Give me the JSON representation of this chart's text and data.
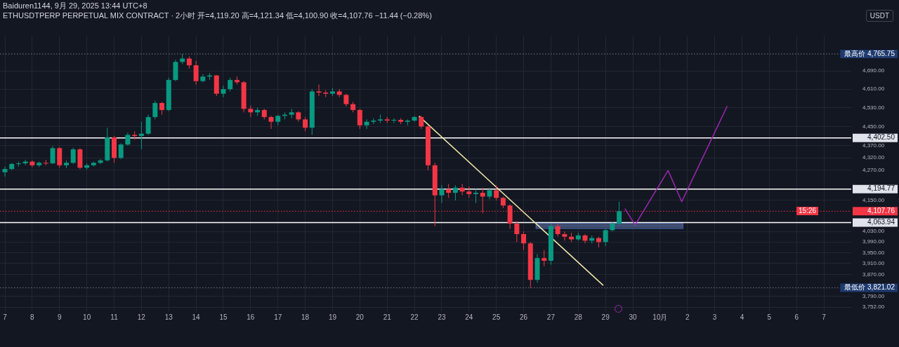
{
  "chart_data": {
    "type": "candlestick",
    "title": "ETHUSDTPERP PERPETUAL MIX CONTRACT · 2小时 开=4,119.20 高=4,121.34 低=4,100.90 收=4,107.76 −11.44 (−0.28%)",
    "subtitle": "Baiduren1144, 9月 29, 2025 13:44 UTC+8",
    "annotations": [
      "USDT",
      "15:26"
    ],
    "log": true,
    "grid": true,
    "xlim": [
      "2025-09-06T19:40",
      "2025-10-08T00:00"
    ],
    "xticks": [
      {
        "value": "2025-09-07",
        "label": "7"
      },
      {
        "value": "2025-09-08",
        "label": "8"
      },
      {
        "value": "2025-09-09",
        "label": "9"
      },
      {
        "value": "2025-09-10",
        "label": "10"
      },
      {
        "value": "2025-09-11",
        "label": "11"
      },
      {
        "value": "2025-09-12",
        "label": "12"
      },
      {
        "value": "2025-09-13",
        "label": "13"
      },
      {
        "value": "2025-09-14",
        "label": "14"
      },
      {
        "value": "2025-09-15",
        "label": "15"
      },
      {
        "value": "2025-09-16",
        "label": "16"
      },
      {
        "value": "2025-09-17",
        "label": "17"
      },
      {
        "value": "2025-09-18",
        "label": "18"
      },
      {
        "value": "2025-09-19",
        "label": "19"
      },
      {
        "value": "2025-09-20",
        "label": "20"
      },
      {
        "value": "2025-09-21",
        "label": "21"
      },
      {
        "value": "2025-09-22",
        "label": "22"
      },
      {
        "value": "2025-09-23",
        "label": "23"
      },
      {
        "value": "2025-09-24",
        "label": "24"
      },
      {
        "value": "2025-09-25",
        "label": "25"
      },
      {
        "value": "2025-09-26",
        "label": "26"
      },
      {
        "value": "2025-09-27",
        "label": "27"
      },
      {
        "value": "2025-09-28",
        "label": "28"
      },
      {
        "value": "2025-09-29",
        "label": "29"
      },
      {
        "value": "2025-09-30",
        "label": "30"
      },
      {
        "value": "2025-10-01",
        "label": "10月"
      },
      {
        "value": "2025-10-02",
        "label": "2"
      },
      {
        "value": "2025-10-03",
        "label": "3"
      },
      {
        "value": "2025-10-04",
        "label": "4"
      },
      {
        "value": "2025-10-05",
        "label": "5"
      },
      {
        "value": "2025-10-06",
        "label": "6"
      },
      {
        "value": "2025-10-07",
        "label": "7"
      }
    ],
    "ylim": [
      3737,
      4849
    ],
    "yticks": [
      {
        "value": 3752,
        "label": "3,752.00"
      },
      {
        "value": 3790,
        "label": "3,790.00"
      },
      {
        "value": 3870,
        "label": "3,870.00"
      },
      {
        "value": 3910,
        "label": "3,910.00"
      },
      {
        "value": 3950,
        "label": "3,950.00"
      },
      {
        "value": 3990,
        "label": "3,990.00"
      },
      {
        "value": 4030,
        "label": "4,030.00"
      },
      {
        "value": 4150,
        "label": "4,150.00"
      },
      {
        "value": 4270,
        "label": "4,270.00"
      },
      {
        "value": 4320,
        "label": "4,320.00"
      },
      {
        "value": 4370,
        "label": "4,370.00"
      },
      {
        "value": 4450,
        "label": "4,450.00"
      },
      {
        "value": 4530,
        "label": "4,530.00"
      },
      {
        "value": 4610,
        "label": "4,610.00"
      },
      {
        "value": 4690,
        "label": "4,690.00"
      }
    ],
    "ref_lines": [
      {
        "axis": "y",
        "value": 4765.75,
        "label": "最高价 4,765.75",
        "color": "#787b86",
        "line_style": "dotted"
      },
      {
        "axis": "y",
        "value": 3821.02,
        "label": "最低价 3,821.02",
        "color": "#787b86",
        "line_style": "dotted"
      },
      {
        "axis": "y",
        "value": 4402.5,
        "label": "4,402.50",
        "color": "#ffffff",
        "line_style": "solid"
      },
      {
        "axis": "y",
        "value": 4194.77,
        "label": "4,194.77",
        "color": "#ffffff",
        "line_style": "solid"
      },
      {
        "axis": "y",
        "value": 4063.94,
        "label": "4,063.94",
        "color": "#ffffff",
        "line_style": "solid"
      },
      {
        "axis": "y",
        "value": 4107.76,
        "label": "4,107.76",
        "color": "#f23645",
        "line_style": "dotted"
      }
    ],
    "x": [
      "2025-09-07T00:00",
      "2025-09-07T06:00",
      "2025-09-07T12:00",
      "2025-09-07T18:00",
      "2025-09-08T00:00",
      "2025-09-08T06:00",
      "2025-09-08T12:00",
      "2025-09-08T18:00",
      "2025-09-09T00:00",
      "2025-09-09T06:00",
      "2025-09-09T12:00",
      "2025-09-09T18:00",
      "2025-09-10T00:00",
      "2025-09-10T06:00",
      "2025-09-10T12:00",
      "2025-09-10T18:00",
      "2025-09-11T00:00",
      "2025-09-11T06:00",
      "2025-09-11T12:00",
      "2025-09-11T18:00",
      "2025-09-12T00:00",
      "2025-09-12T06:00",
      "2025-09-12T12:00",
      "2025-09-12T18:00",
      "2025-09-13T00:00",
      "2025-09-13T06:00",
      "2025-09-13T12:00",
      "2025-09-13T18:00",
      "2025-09-14T00:00",
      "2025-09-14T06:00",
      "2025-09-14T12:00",
      "2025-09-14T18:00",
      "2025-09-15T00:00",
      "2025-09-15T06:00",
      "2025-09-15T12:00",
      "2025-09-15T18:00",
      "2025-09-16T00:00",
      "2025-09-16T06:00",
      "2025-09-16T12:00",
      "2025-09-16T18:00",
      "2025-09-17T00:00",
      "2025-09-17T06:00",
      "2025-09-17T12:00",
      "2025-09-17T18:00",
      "2025-09-18T00:00",
      "2025-09-18T06:00",
      "2025-09-18T12:00",
      "2025-09-18T18:00",
      "2025-09-19T00:00",
      "2025-09-19T06:00",
      "2025-09-19T12:00",
      "2025-09-19T18:00",
      "2025-09-20T00:00",
      "2025-09-20T06:00",
      "2025-09-20T12:00",
      "2025-09-20T18:00",
      "2025-09-21T00:00",
      "2025-09-21T06:00",
      "2025-09-21T12:00",
      "2025-09-21T18:00",
      "2025-09-22T00:00",
      "2025-09-22T06:00",
      "2025-09-22T12:00",
      "2025-09-22T18:00",
      "2025-09-23T00:00",
      "2025-09-23T06:00",
      "2025-09-23T12:00",
      "2025-09-23T18:00",
      "2025-09-24T00:00",
      "2025-09-24T06:00",
      "2025-09-24T12:00",
      "2025-09-24T18:00",
      "2025-09-25T00:00",
      "2025-09-25T06:00",
      "2025-09-25T12:00",
      "2025-09-25T18:00",
      "2025-09-26T00:00",
      "2025-09-26T06:00",
      "2025-09-26T12:00",
      "2025-09-26T18:00",
      "2025-09-27T00:00",
      "2025-09-27T06:00",
      "2025-09-27T12:00",
      "2025-09-27T18:00",
      "2025-09-28T00:00",
      "2025-09-28T06:00",
      "2025-09-28T12:00",
      "2025-09-28T18:00",
      "2025-09-29T00:00",
      "2025-09-29T06:00",
      "2025-09-29T12:00"
    ],
    "ohlc": [
      [
        4262,
        4285,
        4245,
        4275
      ],
      [
        4275,
        4300,
        4270,
        4295
      ],
      [
        4295,
        4305,
        4285,
        4298
      ],
      [
        4298,
        4312,
        4290,
        4305
      ],
      [
        4305,
        4310,
        4282,
        4290
      ],
      [
        4290,
        4305,
        4283,
        4300
      ],
      [
        4300,
        4312,
        4290,
        4298
      ],
      [
        4298,
        4368,
        4295,
        4360
      ],
      [
        4360,
        4365,
        4280,
        4290
      ],
      [
        4290,
        4310,
        4278,
        4300
      ],
      [
        4300,
        4362,
        4295,
        4355
      ],
      [
        4355,
        4360,
        4275,
        4280
      ],
      [
        4280,
        4298,
        4272,
        4290
      ],
      [
        4290,
        4305,
        4285,
        4300
      ],
      [
        4300,
        4315,
        4295,
        4310
      ],
      [
        4310,
        4445,
        4305,
        4405
      ],
      [
        4405,
        4410,
        4300,
        4320
      ],
      [
        4320,
        4380,
        4315,
        4375
      ],
      [
        4375,
        4425,
        4370,
        4415
      ],
      [
        4415,
        4430,
        4395,
        4410
      ],
      [
        4410,
        4470,
        4355,
        4420
      ],
      [
        4420,
        4500,
        4415,
        4490
      ],
      [
        4490,
        4560,
        4480,
        4550
      ],
      [
        4550,
        4555,
        4500,
        4520
      ],
      [
        4520,
        4660,
        4515,
        4650
      ],
      [
        4650,
        4740,
        4645,
        4730
      ],
      [
        4730,
        4765.75,
        4720,
        4745
      ],
      [
        4745,
        4755,
        4700,
        4715
      ],
      [
        4715,
        4735,
        4630,
        4645
      ],
      [
        4645,
        4675,
        4640,
        4665
      ],
      [
        4665,
        4680,
        4650,
        4670
      ],
      [
        4670,
        4672,
        4580,
        4590
      ],
      [
        4590,
        4625,
        4575,
        4610
      ],
      [
        4610,
        4660,
        4600,
        4650
      ],
      [
        4650,
        4665,
        4630,
        4640
      ],
      [
        4640,
        4645,
        4510,
        4525
      ],
      [
        4525,
        4540,
        4490,
        4510
      ],
      [
        4510,
        4530,
        4495,
        4520
      ],
      [
        4520,
        4525,
        4480,
        4490
      ],
      [
        4490,
        4495,
        4440,
        4470
      ],
      [
        4470,
        4500,
        4455,
        4495
      ],
      [
        4495,
        4510,
        4480,
        4500
      ],
      [
        4500,
        4525,
        4485,
        4510
      ],
      [
        4510,
        4515,
        4470,
        4480
      ],
      [
        4480,
        4490,
        4430,
        4445
      ],
      [
        4445,
        4610,
        4415,
        4600
      ],
      [
        4600,
        4630,
        4580,
        4595
      ],
      [
        4595,
        4605,
        4575,
        4590
      ],
      [
        4590,
        4615,
        4580,
        4600
      ],
      [
        4600,
        4610,
        4575,
        4585
      ],
      [
        4585,
        4590,
        4535,
        4545
      ],
      [
        4545,
        4555,
        4510,
        4520
      ],
      [
        4520,
        4525,
        4440,
        4455
      ],
      [
        4455,
        4480,
        4440,
        4470
      ],
      [
        4470,
        4485,
        4460,
        4475
      ],
      [
        4475,
        4500,
        4465,
        4480
      ],
      [
        4480,
        4490,
        4465,
        4475
      ],
      [
        4475,
        4485,
        4465,
        4478
      ],
      [
        4478,
        4485,
        4460,
        4470
      ],
      [
        4470,
        4480,
        4455,
        4475
      ],
      [
        4475,
        4495,
        4470,
        4490
      ],
      [
        4490,
        4495,
        4440,
        4450
      ],
      [
        4450,
        4455,
        4270,
        4290
      ],
      [
        4290,
        4300,
        4050,
        4170
      ],
      [
        4170,
        4210,
        4140,
        4195
      ],
      [
        4195,
        4215,
        4160,
        4180
      ],
      [
        4180,
        4210,
        4150,
        4200
      ],
      [
        4200,
        4215,
        4170,
        4185
      ],
      [
        4185,
        4205,
        4160,
        4175
      ],
      [
        4175,
        4195,
        4140,
        4180
      ],
      [
        4180,
        4200,
        4100,
        4165
      ],
      [
        4165,
        4200,
        4155,
        4190
      ],
      [
        4190,
        4210,
        4150,
        4160
      ],
      [
        4160,
        4165,
        4120,
        4130
      ],
      [
        4130,
        4135,
        4040,
        4060
      ],
      [
        4060,
        4070,
        3990,
        4020
      ],
      [
        4020,
        4030,
        3960,
        3985
      ],
      [
        3985,
        3990,
        3821.02,
        3850
      ],
      [
        3850,
        3945,
        3840,
        3930
      ],
      [
        3930,
        3960,
        3900,
        3920
      ],
      [
        3920,
        4060,
        3905,
        4050
      ],
      [
        4050,
        4060,
        4010,
        4020
      ],
      [
        4020,
        4030,
        3995,
        4010
      ],
      [
        4010,
        4025,
        3990,
        4000
      ],
      [
        4000,
        4025,
        3995,
        4015
      ],
      [
        4015,
        4020,
        3985,
        3995
      ],
      [
        3995,
        4015,
        3985,
        4005
      ],
      [
        4005,
        4010,
        3970,
        3990
      ],
      [
        3990,
        4040,
        3975,
        4035
      ],
      [
        4035,
        4065,
        4030,
        4060
      ],
      [
        4060,
        4145,
        4055,
        4107.76
      ]
    ],
    "series": [
      {
        "type": "line",
        "x": [
          "2025-09-22T04:00",
          "2025-09-28T22:00"
        ],
        "values": [
          4494,
          3830
        ],
        "color": "#f0e6a8"
      },
      {
        "type": "line",
        "x": [
          "2025-09-26T11:00",
          "2025-10-01T20:00"
        ],
        "values": [
          4051,
          4051
        ],
        "lower": [
          4042,
          4042
        ],
        "upper": [
          4060,
          4060
        ],
        "color": "#3d5a9e"
      },
      {
        "type": "line",
        "x": [
          "2025-09-29T17:00",
          "2025-09-30T02:00",
          "2025-10-01T07:00",
          "2025-10-01T19:00",
          "2025-10-03T11:00"
        ],
        "values": [
          4118,
          4055,
          4269,
          4145,
          4537
        ],
        "color": "#9c27b0"
      }
    ]
  }
}
